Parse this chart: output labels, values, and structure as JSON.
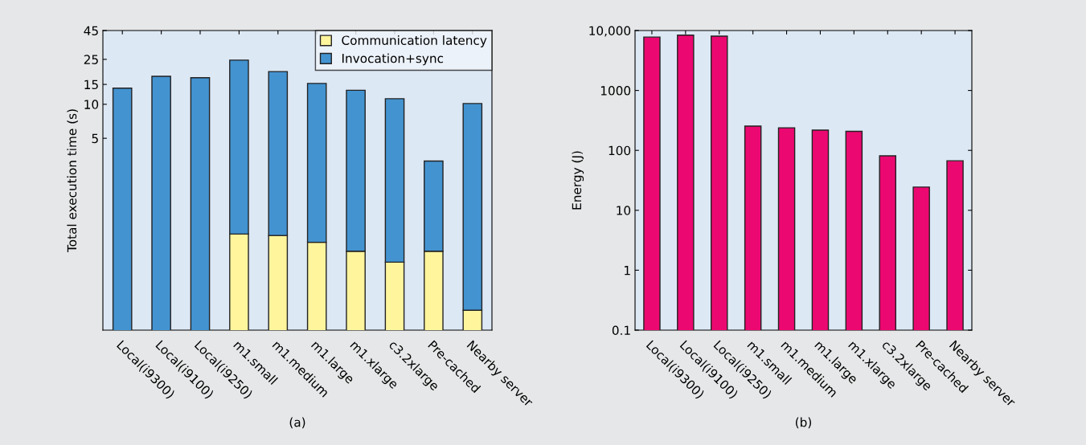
{
  "chart_data": [
    {
      "type": "bar",
      "stacked": true,
      "log": "y",
      "ylabel": "Total execution time (s)",
      "categories": [
        "Local(i9300)",
        "Local(i9100)",
        "Local(i9250)",
        "m1.small",
        "m1.medium",
        "m1.large",
        "m1.xlarge",
        "c3.2xlarge",
        "Pre-cached",
        "Nearby server"
      ],
      "series": [
        {
          "name": "Communication latency",
          "color": "#fff59d",
          "values": [
            null,
            null,
            null,
            0.71,
            0.69,
            0.6,
            0.5,
            0.4,
            0.5,
            0.15
          ]
        },
        {
          "name": "Invocation+sync",
          "color": "#4393d0",
          "values": [
            13.9,
            17.7,
            17.2,
            23.9,
            18.8,
            14.7,
            12.8,
            10.8,
            2.64,
            10.0
          ]
        }
      ],
      "ylim": [
        0.1,
        45
      ],
      "yticks": [
        5,
        10,
        15,
        25,
        45
      ],
      "legend": "top right",
      "annotations": [
        "(a)"
      ]
    },
    {
      "type": "bar",
      "log": "y",
      "ylabel": "Energy (J)",
      "categories": [
        "Local(i9300)",
        "Local(i9100)",
        "Local(i9250)",
        "m1.small",
        "m1.medium",
        "m1.large",
        "m1.xlarge",
        "c3.2xlarge",
        "Pre-cached",
        "Nearby server"
      ],
      "series": [
        {
          "color": "#ec0871",
          "values": [
            7780,
            8380,
            8070,
            254,
            238,
            218,
            208,
            81,
            24.4,
            67
          ]
        }
      ],
      "ylim": [
        0.1,
        10000
      ],
      "yticks": [
        0.1,
        1,
        10,
        100,
        1000,
        {
          "value": 10000,
          "label": "10,000"
        }
      ],
      "legend": false,
      "annotations": [
        "(b)"
      ]
    }
  ]
}
